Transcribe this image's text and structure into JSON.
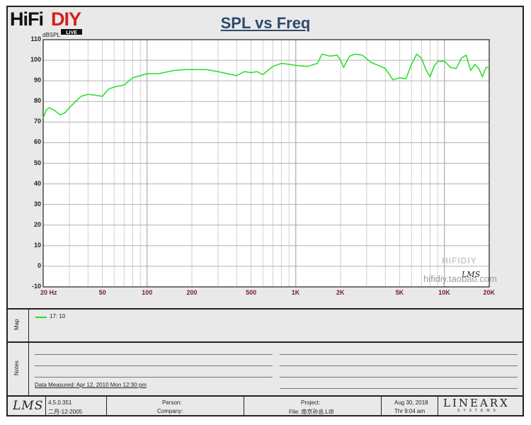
{
  "logo": {
    "text": "HiFiDIY",
    "badge": "LIVE"
  },
  "chart_data": {
    "type": "line",
    "title": "SPL vs Freq",
    "ylabel": "dBSPL",
    "xlabel": "",
    "xscale": "log",
    "xlim": [
      20,
      20000
    ],
    "ylim": [
      -10,
      110
    ],
    "grid": true,
    "x_tick_labels": [
      "20 Hz",
      "50",
      "100",
      "200",
      "500",
      "1K",
      "2K",
      "5K",
      "10K",
      "20K"
    ],
    "x_tick_values": [
      20,
      50,
      100,
      200,
      500,
      1000,
      2000,
      5000,
      10000,
      20000
    ],
    "y_tick_labels": [
      "110",
      "100",
      "90",
      "80",
      "70",
      "60",
      "50",
      "40",
      "30",
      "20",
      "10",
      "0",
      "-10"
    ],
    "series": [
      {
        "name": "17: 10",
        "color": "#22e022",
        "x": [
          20,
          21,
          22,
          24,
          26,
          28,
          30,
          33,
          36,
          40,
          45,
          50,
          55,
          60,
          70,
          80,
          90,
          100,
          120,
          150,
          180,
          200,
          250,
          300,
          400,
          450,
          500,
          550,
          600,
          700,
          800,
          900,
          1000,
          1200,
          1400,
          1500,
          1700,
          1900,
          2000,
          2100,
          2300,
          2500,
          2800,
          3200,
          3600,
          4000,
          4500,
          5000,
          5500,
          6000,
          6500,
          7000,
          7500,
          8000,
          8500,
          9000,
          10000,
          11000,
          12000,
          13000,
          14000,
          15000,
          16000,
          17000,
          18000,
          19000,
          20000
        ],
        "y": [
          72,
          76,
          77,
          75.5,
          73.5,
          74.5,
          77,
          80,
          82.5,
          83.5,
          83,
          82.5,
          86,
          87,
          88,
          91.5,
          92.5,
          93.5,
          93.5,
          95,
          95.5,
          95.5,
          95.5,
          94.5,
          92.5,
          94.5,
          94,
          94.5,
          93,
          97,
          98.5,
          98,
          97.5,
          97,
          98.5,
          103,
          102,
          102.5,
          100,
          96.5,
          102,
          103,
          102.5,
          99,
          97.5,
          96,
          90.5,
          91.5,
          91,
          98,
          103,
          101,
          95.5,
          92,
          97,
          99.5,
          99.5,
          96.5,
          96,
          101,
          102.5,
          95,
          98,
          96,
          92,
          96.5,
          96.5
        ]
      }
    ]
  },
  "watermark": {
    "brand": "HIFIDIY",
    "site": "hifidiy.taobao.com",
    "lms": "LMS"
  },
  "map_panel": {
    "label": "Map",
    "legend": "17: 10"
  },
  "notes_panel": {
    "label": "Notes",
    "measured": "Data Measured: Apr 12, 2010  Mon 12:30 pm"
  },
  "footer": {
    "lms_logo": "LMS",
    "version": "4.5.0.351",
    "version_date": "二月-12-2005",
    "person_label": "Person:",
    "company_label": "Company:",
    "project_label": "Project:",
    "file_label": "File: 南京孙总.LIB",
    "date": "Aug 30, 2018",
    "time": "Thr  9:04 am",
    "brand": "LINEARX",
    "brand_sub": "SYSTEMS"
  }
}
